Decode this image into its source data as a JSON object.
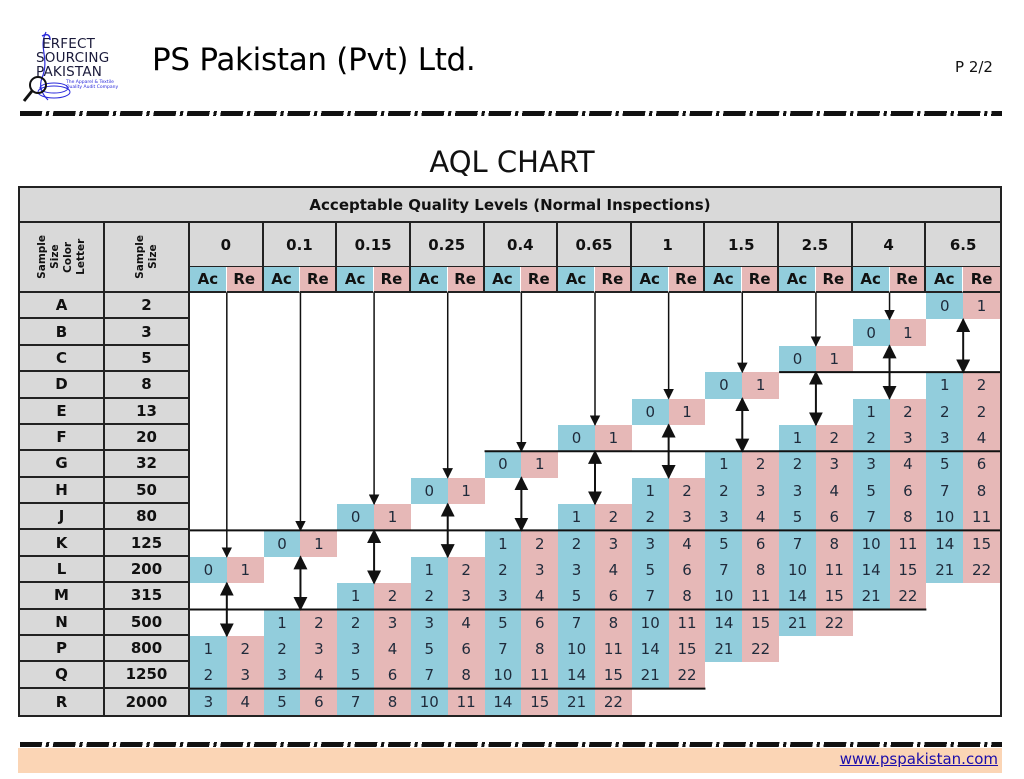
{
  "header": {
    "logo": {
      "line1": "ERFECT",
      "line2": "SOURCING",
      "line3": "PAKISTAN",
      "tagline": "The Apparel & Textile Quality Audit Company",
      "icon": "magnifier-thread-spool-icon"
    },
    "company_name": "PS Pakistan (Pvt) Ltd.",
    "page_number": "P 2/2"
  },
  "chart_title": "AQL CHART",
  "table": {
    "title": "Acceptable Quality Levels (Normal Inspections)",
    "col_code_header": "Sample Size Color Letter",
    "col_size_header": "Sample Size",
    "aql_levels": [
      "0",
      "0.1",
      "0.15",
      "0.25",
      "0.4",
      "0.65",
      "1",
      "1.5",
      "2.5",
      "4",
      "6.5"
    ],
    "sub_headers": {
      "ac": "Ac",
      "re": "Re"
    },
    "rows": [
      {
        "code": "A",
        "size": "2",
        "cells": [
          [
            10,
            "0",
            "1"
          ]
        ]
      },
      {
        "code": "B",
        "size": "3",
        "cells": [
          [
            9,
            "0",
            "1"
          ]
        ]
      },
      {
        "code": "C",
        "size": "5",
        "cells": [
          [
            8,
            "0",
            "1"
          ]
        ]
      },
      {
        "code": "D",
        "size": "8",
        "cells": [
          [
            7,
            "0",
            "1"
          ],
          [
            10,
            "1",
            "2"
          ]
        ]
      },
      {
        "code": "E",
        "size": "13",
        "cells": [
          [
            6,
            "0",
            "1"
          ],
          [
            9,
            "1",
            "2"
          ],
          [
            10,
            "2",
            "2"
          ]
        ]
      },
      {
        "code": "F",
        "size": "20",
        "cells": [
          [
            5,
            "0",
            "1"
          ],
          [
            8,
            "1",
            "2"
          ],
          [
            9,
            "2",
            "3"
          ],
          [
            10,
            "3",
            "4"
          ]
        ]
      },
      {
        "code": "G",
        "size": "32",
        "cells": [
          [
            4,
            "0",
            "1"
          ],
          [
            7,
            "1",
            "2"
          ],
          [
            8,
            "2",
            "3"
          ],
          [
            9,
            "3",
            "4"
          ],
          [
            10,
            "5",
            "6"
          ]
        ]
      },
      {
        "code": "H",
        "size": "50",
        "cells": [
          [
            3,
            "0",
            "1"
          ],
          [
            6,
            "1",
            "2"
          ],
          [
            7,
            "2",
            "3"
          ],
          [
            8,
            "3",
            "4"
          ],
          [
            9,
            "5",
            "6"
          ],
          [
            10,
            "7",
            "8"
          ]
        ]
      },
      {
        "code": "J",
        "size": "80",
        "cells": [
          [
            2,
            "0",
            "1"
          ],
          [
            5,
            "1",
            "2"
          ],
          [
            6,
            "2",
            "3"
          ],
          [
            7,
            "3",
            "4"
          ],
          [
            8,
            "5",
            "6"
          ],
          [
            9,
            "7",
            "8"
          ],
          [
            10,
            "10",
            "11"
          ]
        ]
      },
      {
        "code": "K",
        "size": "125",
        "cells": [
          [
            1,
            "0",
            "1"
          ],
          [
            4,
            "1",
            "2"
          ],
          [
            5,
            "2",
            "3"
          ],
          [
            6,
            "3",
            "4"
          ],
          [
            7,
            "5",
            "6"
          ],
          [
            8,
            "7",
            "8"
          ],
          [
            9,
            "10",
            "11"
          ],
          [
            10,
            "14",
            "15"
          ]
        ]
      },
      {
        "code": "L",
        "size": "200",
        "cells": [
          [
            0,
            "0",
            "1"
          ],
          [
            3,
            "1",
            "2"
          ],
          [
            4,
            "2",
            "3"
          ],
          [
            5,
            "3",
            "4"
          ],
          [
            6,
            "5",
            "6"
          ],
          [
            7,
            "7",
            "8"
          ],
          [
            8,
            "10",
            "11"
          ],
          [
            9,
            "14",
            "15"
          ],
          [
            10,
            "21",
            "22"
          ]
        ]
      },
      {
        "code": "M",
        "size": "315",
        "cells": [
          [
            2,
            "1",
            "2"
          ],
          [
            3,
            "2",
            "3"
          ],
          [
            4,
            "3",
            "4"
          ],
          [
            5,
            "5",
            "6"
          ],
          [
            6,
            "7",
            "8"
          ],
          [
            7,
            "10",
            "11"
          ],
          [
            8,
            "14",
            "15"
          ],
          [
            9,
            "21",
            "22"
          ]
        ]
      },
      {
        "code": "N",
        "size": "500",
        "cells": [
          [
            1,
            "1",
            "2"
          ],
          [
            2,
            "2",
            "3"
          ],
          [
            3,
            "3",
            "4"
          ],
          [
            4,
            "5",
            "6"
          ],
          [
            5,
            "7",
            "8"
          ],
          [
            6,
            "10",
            "11"
          ],
          [
            7,
            "14",
            "15"
          ],
          [
            8,
            "21",
            "22"
          ]
        ]
      },
      {
        "code": "P",
        "size": "800",
        "cells": [
          [
            0,
            "1",
            "2"
          ],
          [
            1,
            "2",
            "3"
          ],
          [
            2,
            "3",
            "4"
          ],
          [
            3,
            "5",
            "6"
          ],
          [
            4,
            "7",
            "8"
          ],
          [
            5,
            "10",
            "11"
          ],
          [
            6,
            "14",
            "15"
          ],
          [
            7,
            "21",
            "22"
          ]
        ]
      },
      {
        "code": "Q",
        "size": "1250",
        "cells": [
          [
            0,
            "2",
            "3"
          ],
          [
            1,
            "3",
            "4"
          ],
          [
            2,
            "5",
            "6"
          ],
          [
            3,
            "7",
            "8"
          ],
          [
            4,
            "10",
            "11"
          ],
          [
            5,
            "14",
            "15"
          ],
          [
            6,
            "21",
            "22"
          ]
        ]
      },
      {
        "code": "R",
        "size": "2000",
        "cells": [
          [
            0,
            "3",
            "4"
          ],
          [
            1,
            "5",
            "6"
          ],
          [
            2,
            "7",
            "8"
          ],
          [
            3,
            "10",
            "11"
          ],
          [
            4,
            "14",
            "15"
          ],
          [
            5,
            "21",
            "22"
          ]
        ]
      }
    ],
    "separators": [
      {
        "below_row": 2,
        "from_group": 8,
        "to_group": 10
      },
      {
        "below_row": 5,
        "from_group": 4,
        "to_group": 10
      },
      {
        "below_row": 8,
        "from_group": 0,
        "to_group": 10
      },
      {
        "below_row": 11,
        "from_group": 0,
        "to_group": 9
      },
      {
        "below_row": 14,
        "from_group": 0,
        "to_group": 6
      }
    ],
    "colors": {
      "ac": "#92cddc",
      "re": "#e6b8b7",
      "header": "#d9d9d9",
      "border": "#222222"
    }
  },
  "footer": {
    "website": "www.pspakistan.com",
    "background": "#fbd5b5"
  }
}
